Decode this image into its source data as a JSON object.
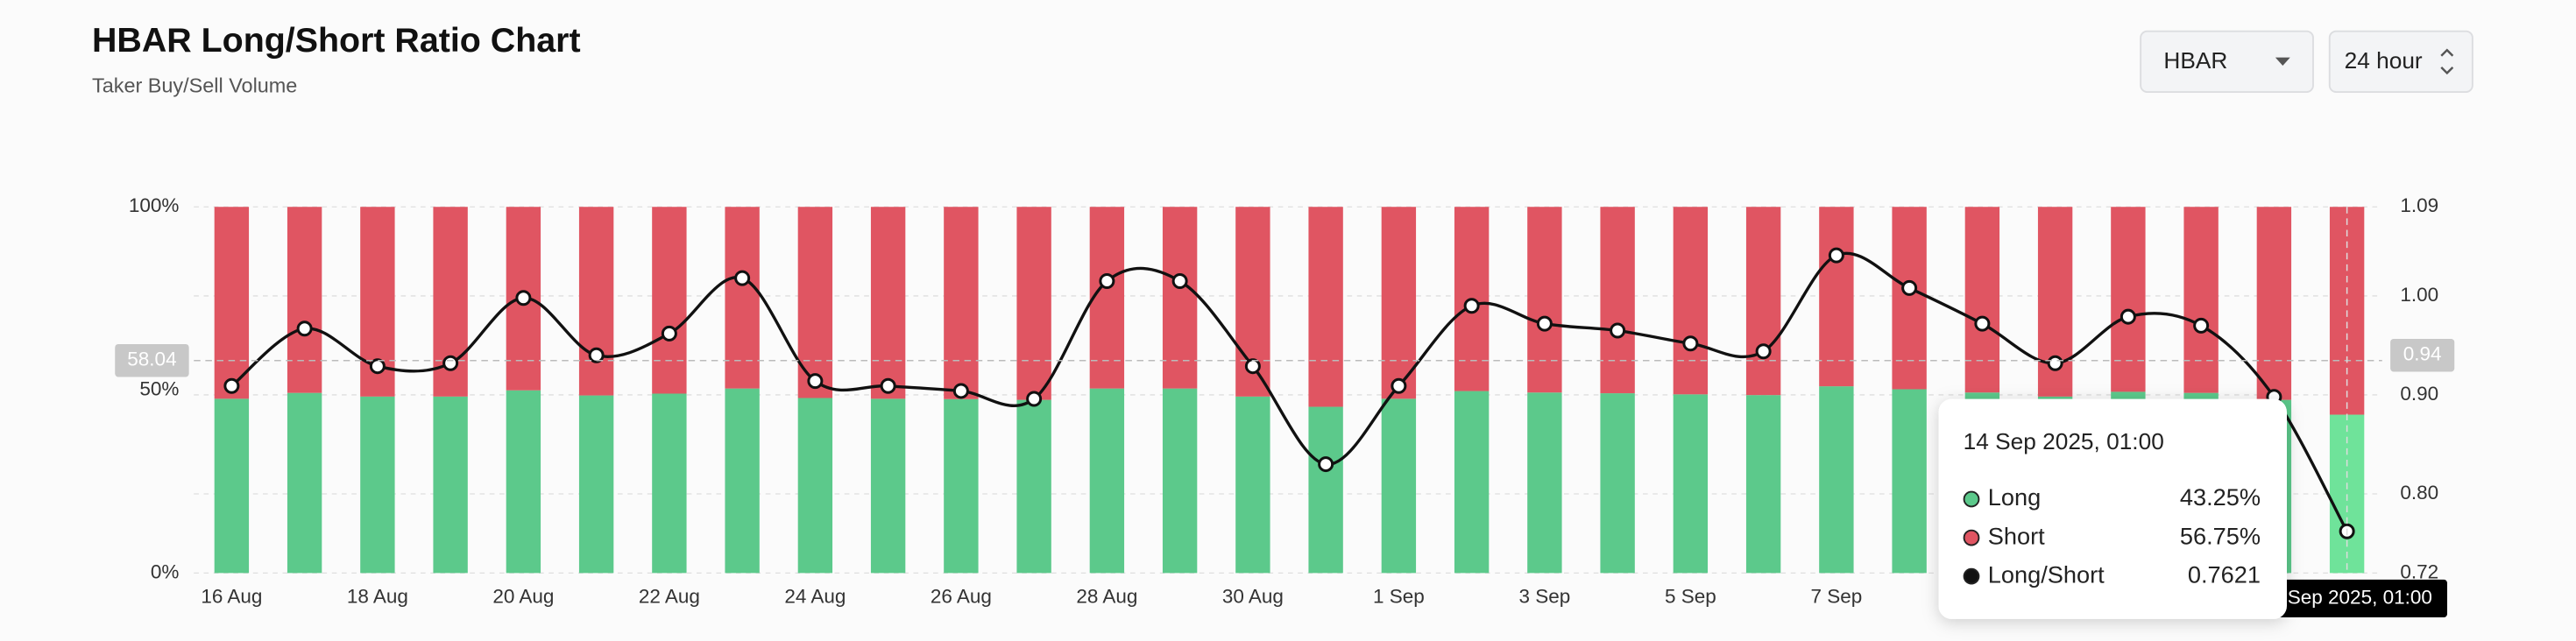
{
  "header": {
    "title": "HBAR Long/Short Ratio Chart",
    "subtitle": "Taker Buy/Sell Volume"
  },
  "controls": {
    "symbol": "HBAR",
    "interval": "24 hour"
  },
  "chart_data": {
    "type": "bar-line",
    "categories": [
      "16 Aug",
      null,
      "18 Aug",
      null,
      "20 Aug",
      null,
      "22 Aug",
      null,
      "24 Aug",
      null,
      "26 Aug",
      null,
      "28 Aug",
      null,
      "30 Aug",
      null,
      "1 Sep",
      null,
      "3 Sep",
      null,
      "5 Sep",
      null,
      "7 Sep",
      null,
      null,
      null,
      null,
      null,
      null,
      null
    ],
    "series": [
      {
        "name": "Long",
        "color": "#5cc98b",
        "values": [
          47.6,
          49.2,
          48.2,
          48.2,
          49.9,
          48.5,
          49.0,
          50.4,
          47.8,
          47.6,
          47.5,
          47.3,
          50.4,
          50.4,
          48.2,
          45.4,
          47.6,
          49.7,
          49.3,
          49.1,
          48.8,
          48.6,
          51.0,
          50.2,
          49.3,
          48.2,
          49.5,
          49.2,
          47.3,
          43.25
        ]
      },
      {
        "name": "Short",
        "color": "#e05562",
        "values": [
          52.4,
          50.8,
          51.8,
          51.8,
          50.1,
          51.5,
          51.0,
          49.6,
          52.2,
          52.4,
          52.5,
          52.7,
          49.6,
          49.6,
          51.8,
          54.6,
          52.4,
          50.3,
          50.7,
          50.9,
          51.2,
          51.4,
          49.0,
          49.8,
          50.7,
          51.8,
          50.5,
          50.8,
          52.7,
          56.75
        ]
      },
      {
        "name": "Long/Short",
        "color": "#111111",
        "axis": "y2",
        "values": [
          0.909,
          0.967,
          0.929,
          0.932,
          0.998,
          0.94,
          0.962,
          1.018,
          0.914,
          0.909,
          0.904,
          0.896,
          1.015,
          1.015,
          0.929,
          0.83,
          0.909,
          0.99,
          0.972,
          0.965,
          0.952,
          0.944,
          1.041,
          1.008,
          0.972,
          0.932,
          0.979,
          0.97,
          0.898,
          0.7621
        ]
      }
    ],
    "ylim": [
      0,
      100
    ],
    "yticks": [
      {
        "value": 0,
        "label": "0%"
      },
      {
        "value": 50,
        "label": "50%"
      },
      {
        "value": 100,
        "label": "100%"
      }
    ],
    "y2lim": [
      0.72,
      1.09
    ],
    "y2ticks": [
      0.72,
      {
        "value": 0.8,
        "label": "0.80"
      },
      {
        "value": 0.9,
        "label": "0.90"
      },
      {
        "value": 1.0,
        "label": "1.00"
      },
      1.09
    ],
    "grid": true,
    "crosshair": {
      "y": 58.04,
      "y2": 0.94
    },
    "tooltip": {
      "title": "14 Sep 2025, 01:00",
      "value_labels": [
        "43.25%",
        "56.75%",
        "0.7621"
      ]
    }
  }
}
